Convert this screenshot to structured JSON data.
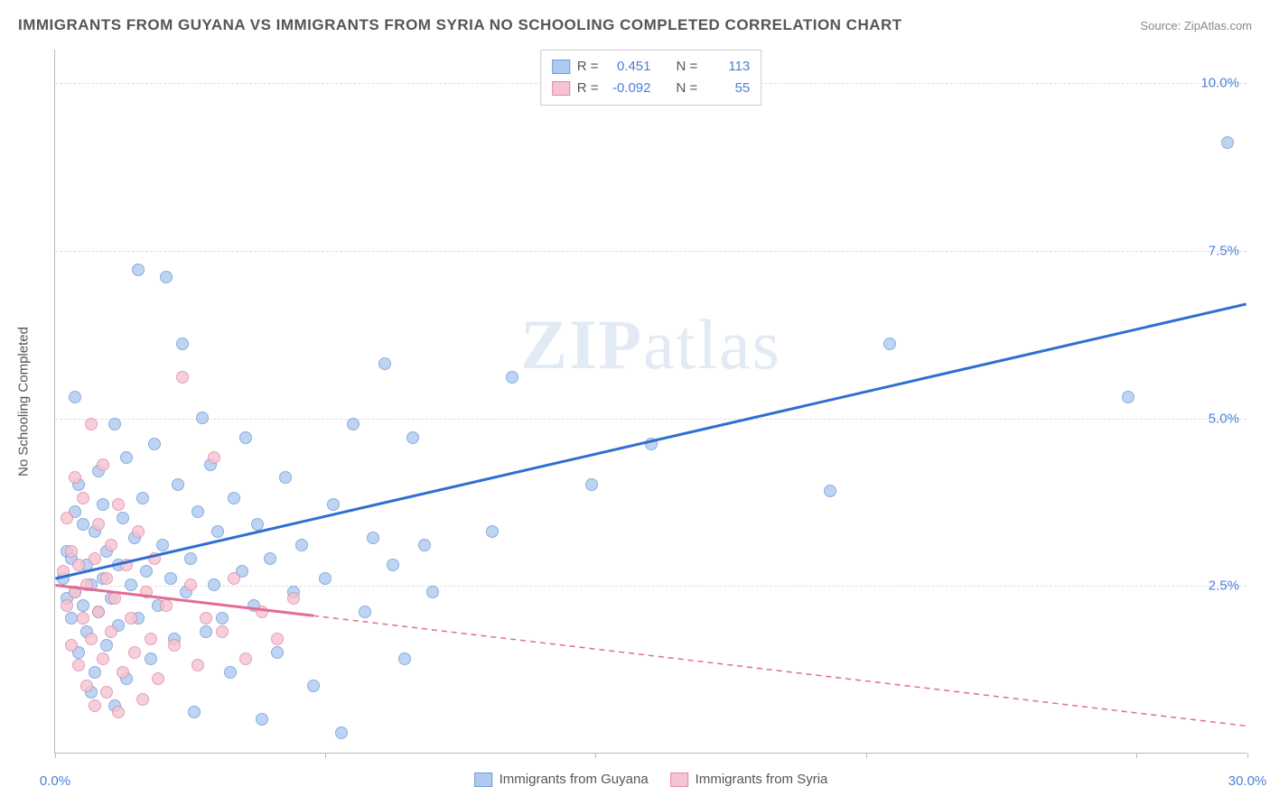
{
  "title": "IMMIGRANTS FROM GUYANA VS IMMIGRANTS FROM SYRIA NO SCHOOLING COMPLETED CORRELATION CHART",
  "source": "Source: ZipAtlas.com",
  "watermark": "ZIPatlas",
  "y_axis_label": "No Schooling Completed",
  "chart": {
    "type": "scatter",
    "xlim": [
      0,
      30
    ],
    "ylim": [
      0,
      10.5
    ],
    "x_ticks": [
      0,
      6.8,
      13.6,
      20.4,
      27.2,
      30
    ],
    "x_tick_labels_shown": {
      "0": "0.0%",
      "30": "30.0%"
    },
    "y_ticks": [
      2.5,
      5.0,
      7.5,
      10.0
    ],
    "y_tick_labels": [
      "2.5%",
      "5.0%",
      "7.5%",
      "10.0%"
    ],
    "grid_color": "#dddddd",
    "axis_color": "#bbbbbb",
    "label_color": "#4a7fd6",
    "background_color": "#ffffff",
    "point_radius": 7,
    "series": [
      {
        "name": "Immigrants from Guyana",
        "fill_color": "#aecaf0",
        "stroke_color": "#6b9bd8",
        "line_color": "#2f6fd0",
        "R": "0.451",
        "N": "113",
        "trend": {
          "x1": 0,
          "y1": 2.6,
          "x2": 30,
          "y2": 6.7,
          "solid_until_x": 30
        },
        "points": [
          [
            0.2,
            2.6
          ],
          [
            0.3,
            2.3
          ],
          [
            0.3,
            3.0
          ],
          [
            0.4,
            2.9
          ],
          [
            0.4,
            2.0
          ],
          [
            0.5,
            3.6
          ],
          [
            0.5,
            2.4
          ],
          [
            0.5,
            5.3
          ],
          [
            0.6,
            1.5
          ],
          [
            0.6,
            4.0
          ],
          [
            0.7,
            2.2
          ],
          [
            0.7,
            3.4
          ],
          [
            0.8,
            2.8
          ],
          [
            0.8,
            1.8
          ],
          [
            0.9,
            2.5
          ],
          [
            0.9,
            0.9
          ],
          [
            1.0,
            3.3
          ],
          [
            1.0,
            1.2
          ],
          [
            1.1,
            2.1
          ],
          [
            1.1,
            4.2
          ],
          [
            1.2,
            3.7
          ],
          [
            1.2,
            2.6
          ],
          [
            1.3,
            1.6
          ],
          [
            1.3,
            3.0
          ],
          [
            1.4,
            2.3
          ],
          [
            1.5,
            4.9
          ],
          [
            1.5,
            0.7
          ],
          [
            1.6,
            2.8
          ],
          [
            1.6,
            1.9
          ],
          [
            1.7,
            3.5
          ],
          [
            1.8,
            1.1
          ],
          [
            1.8,
            4.4
          ],
          [
            1.9,
            2.5
          ],
          [
            2.0,
            3.2
          ],
          [
            2.1,
            7.2
          ],
          [
            2.1,
            2.0
          ],
          [
            2.2,
            3.8
          ],
          [
            2.3,
            2.7
          ],
          [
            2.4,
            1.4
          ],
          [
            2.5,
            4.6
          ],
          [
            2.6,
            2.2
          ],
          [
            2.7,
            3.1
          ],
          [
            2.8,
            7.1
          ],
          [
            2.9,
            2.6
          ],
          [
            3.0,
            1.7
          ],
          [
            3.1,
            4.0
          ],
          [
            3.2,
            6.1
          ],
          [
            3.3,
            2.4
          ],
          [
            3.4,
            2.9
          ],
          [
            3.5,
            0.6
          ],
          [
            3.6,
            3.6
          ],
          [
            3.7,
            5.0
          ],
          [
            3.8,
            1.8
          ],
          [
            3.9,
            4.3
          ],
          [
            4.0,
            2.5
          ],
          [
            4.1,
            3.3
          ],
          [
            4.2,
            2.0
          ],
          [
            4.4,
            1.2
          ],
          [
            4.5,
            3.8
          ],
          [
            4.7,
            2.7
          ],
          [
            4.8,
            4.7
          ],
          [
            5.0,
            2.2
          ],
          [
            5.1,
            3.4
          ],
          [
            5.2,
            0.5
          ],
          [
            5.4,
            2.9
          ],
          [
            5.6,
            1.5
          ],
          [
            5.8,
            4.1
          ],
          [
            6.0,
            2.4
          ],
          [
            6.2,
            3.1
          ],
          [
            6.5,
            1.0
          ],
          [
            6.8,
            2.6
          ],
          [
            7.0,
            3.7
          ],
          [
            7.2,
            0.3
          ],
          [
            7.5,
            4.9
          ],
          [
            7.8,
            2.1
          ],
          [
            8.0,
            3.2
          ],
          [
            8.3,
            5.8
          ],
          [
            8.5,
            2.8
          ],
          [
            8.8,
            1.4
          ],
          [
            9.0,
            4.7
          ],
          [
            9.3,
            3.1
          ],
          [
            9.5,
            2.4
          ],
          [
            11.0,
            3.3
          ],
          [
            11.5,
            5.6
          ],
          [
            13.5,
            4.0
          ],
          [
            15.0,
            4.6
          ],
          [
            19.5,
            3.9
          ],
          [
            21.0,
            6.1
          ],
          [
            27.0,
            5.3
          ],
          [
            29.5,
            9.1
          ]
        ]
      },
      {
        "name": "Immigrants from Syria",
        "fill_color": "#f4c4d2",
        "stroke_color": "#e388a5",
        "line_color": "#e36b94",
        "R": "-0.092",
        "N": "55",
        "trend": {
          "x1": 0,
          "y1": 2.5,
          "x2": 30,
          "y2": 0.4,
          "solid_until_x": 6.5
        },
        "points": [
          [
            0.2,
            2.7
          ],
          [
            0.3,
            2.2
          ],
          [
            0.3,
            3.5
          ],
          [
            0.4,
            1.6
          ],
          [
            0.4,
            3.0
          ],
          [
            0.5,
            2.4
          ],
          [
            0.5,
            4.1
          ],
          [
            0.6,
            1.3
          ],
          [
            0.6,
            2.8
          ],
          [
            0.7,
            2.0
          ],
          [
            0.7,
            3.8
          ],
          [
            0.8,
            1.0
          ],
          [
            0.8,
            2.5
          ],
          [
            0.9,
            4.9
          ],
          [
            0.9,
            1.7
          ],
          [
            1.0,
            2.9
          ],
          [
            1.0,
            0.7
          ],
          [
            1.1,
            3.4
          ],
          [
            1.1,
            2.1
          ],
          [
            1.2,
            1.4
          ],
          [
            1.2,
            4.3
          ],
          [
            1.3,
            2.6
          ],
          [
            1.3,
            0.9
          ],
          [
            1.4,
            3.1
          ],
          [
            1.4,
            1.8
          ],
          [
            1.5,
            2.3
          ],
          [
            1.6,
            0.6
          ],
          [
            1.6,
            3.7
          ],
          [
            1.7,
            1.2
          ],
          [
            1.8,
            2.8
          ],
          [
            1.9,
            2.0
          ],
          [
            2.0,
            1.5
          ],
          [
            2.1,
            3.3
          ],
          [
            2.2,
            0.8
          ],
          [
            2.3,
            2.4
          ],
          [
            2.4,
            1.7
          ],
          [
            2.5,
            2.9
          ],
          [
            2.6,
            1.1
          ],
          [
            2.8,
            2.2
          ],
          [
            3.0,
            1.6
          ],
          [
            3.2,
            5.6
          ],
          [
            3.4,
            2.5
          ],
          [
            3.6,
            1.3
          ],
          [
            3.8,
            2.0
          ],
          [
            4.0,
            4.4
          ],
          [
            4.2,
            1.8
          ],
          [
            4.5,
            2.6
          ],
          [
            4.8,
            1.4
          ],
          [
            5.2,
            2.1
          ],
          [
            5.6,
            1.7
          ],
          [
            6.0,
            2.3
          ]
        ]
      }
    ]
  },
  "legend_top_labels": {
    "R": "R =",
    "N": "N ="
  },
  "legend_bottom": [
    "Immigrants from Guyana",
    "Immigrants from Syria"
  ]
}
